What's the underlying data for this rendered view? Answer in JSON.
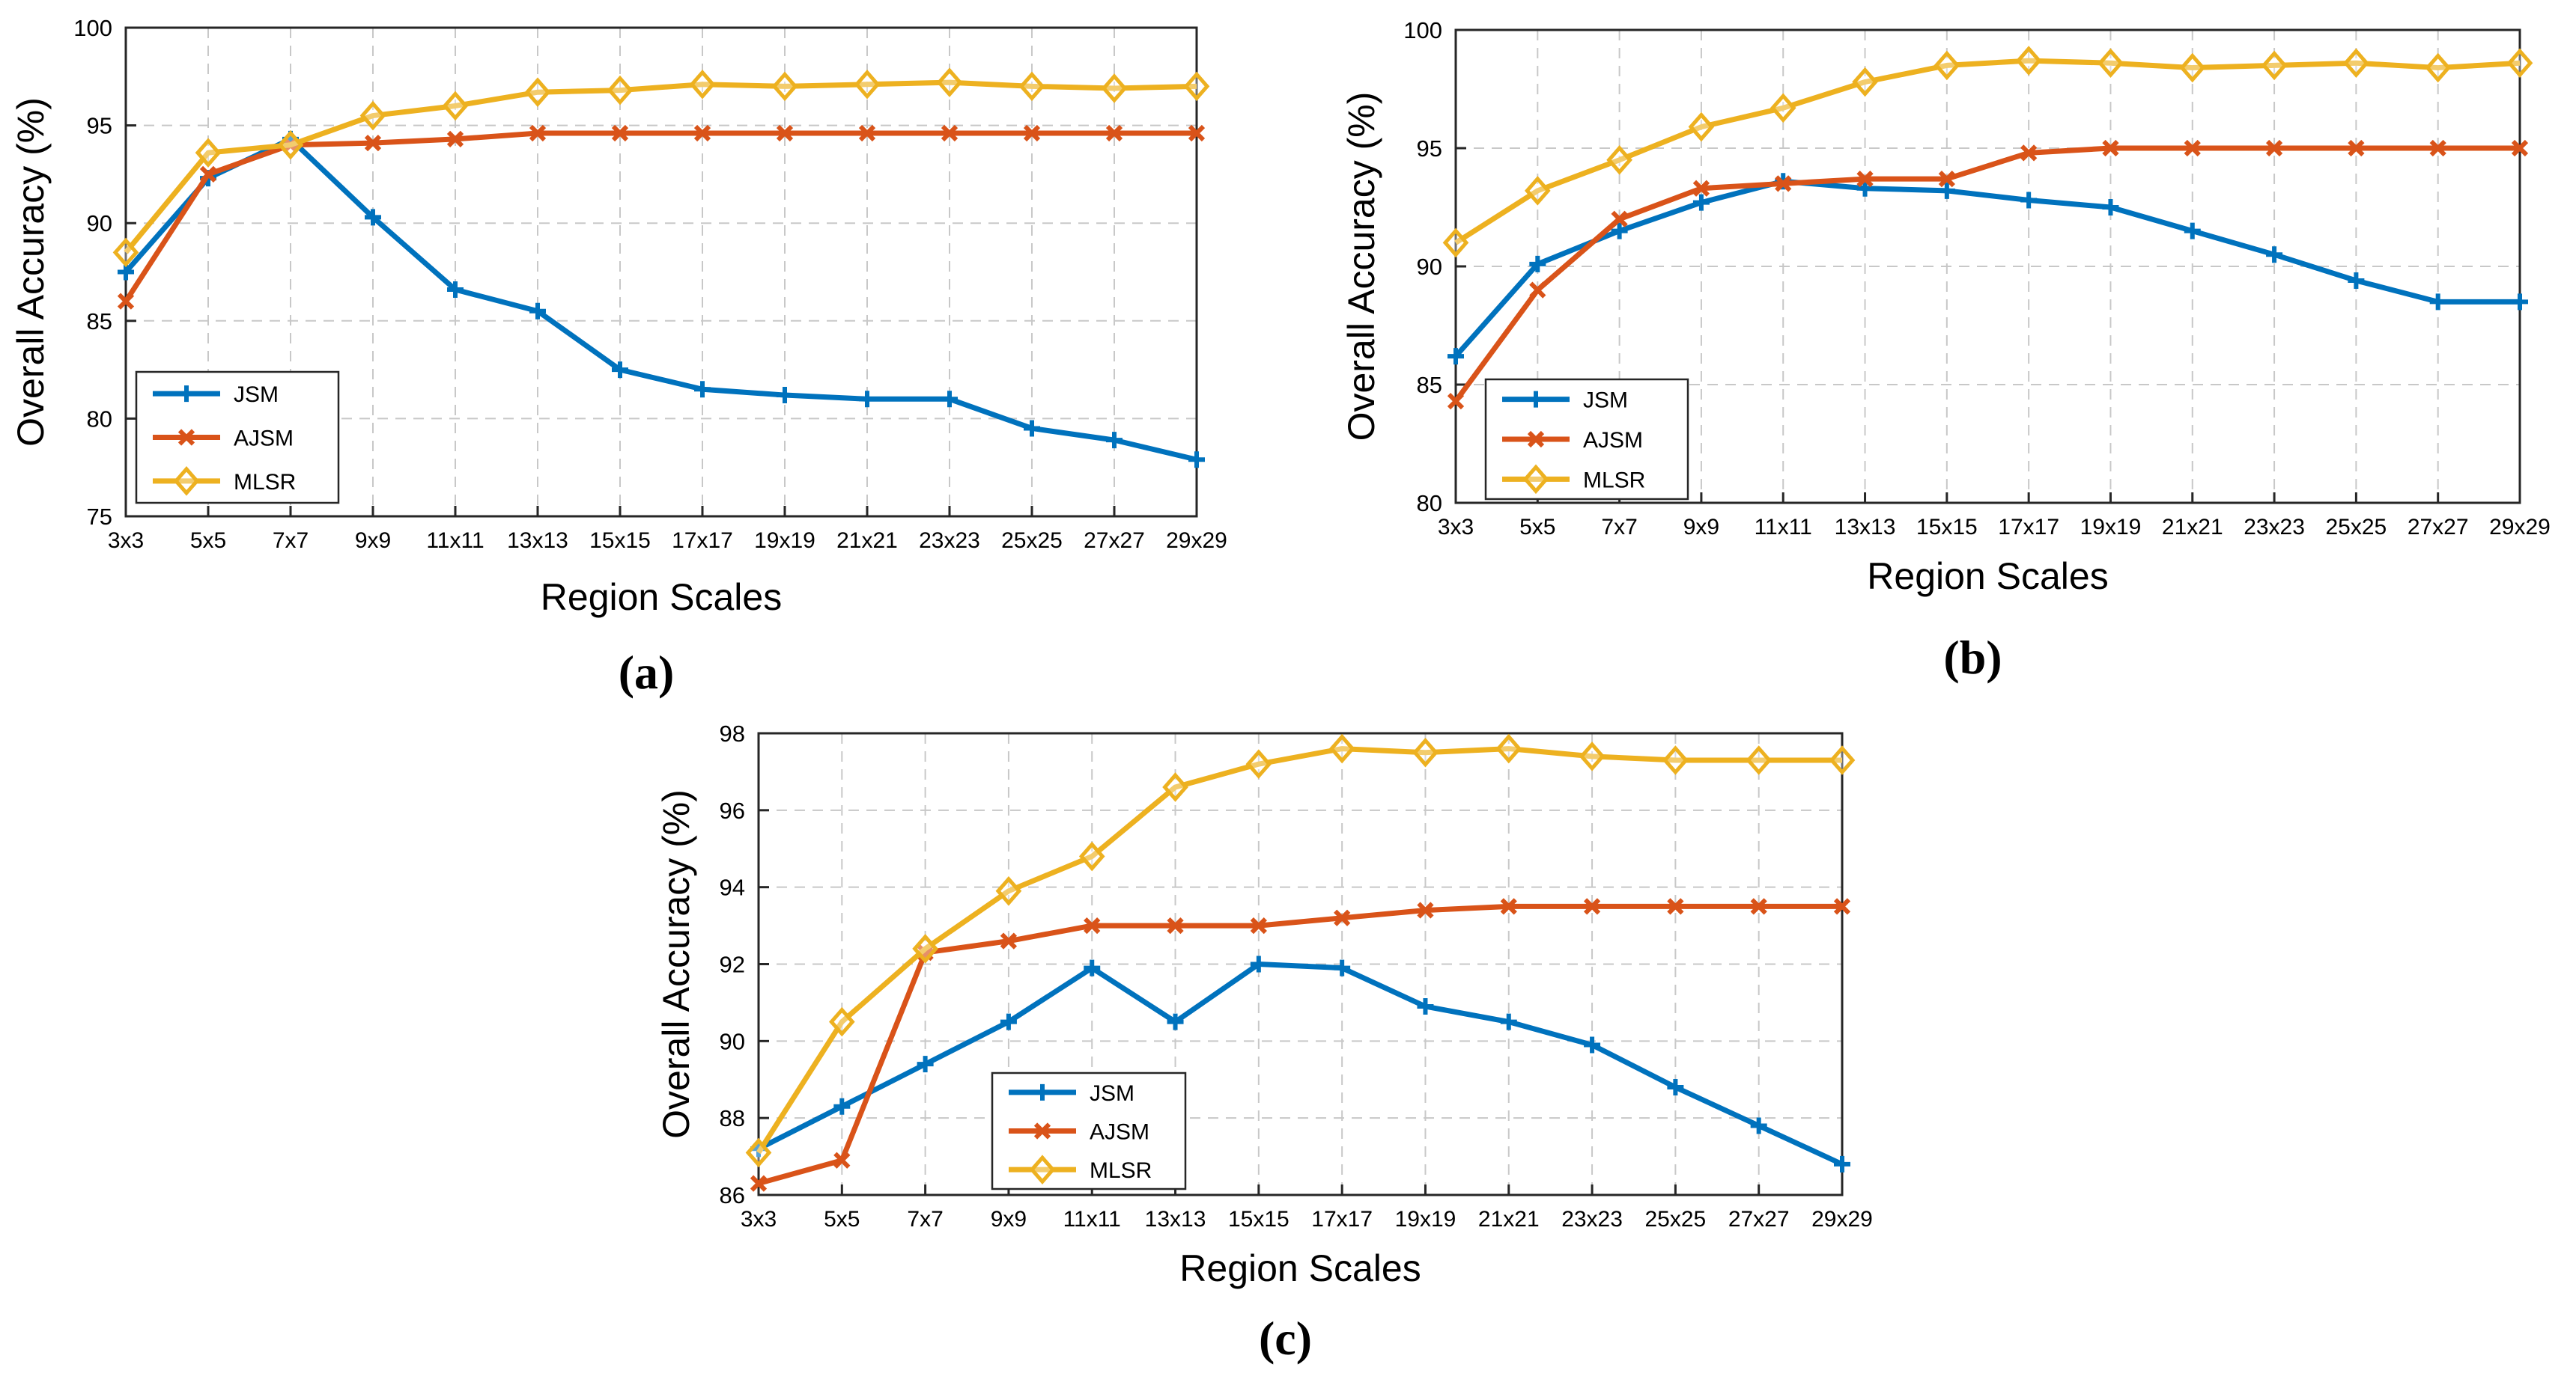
{
  "figure": {
    "colors": {
      "JSM": "#0072BD",
      "AJSM": "#D95319",
      "MLSR": "#EDB120",
      "axis": "#262626",
      "grid": "#c8c8c8"
    }
  },
  "chart_data": [
    {
      "type": "line",
      "panel_label": "(a)",
      "xlabel": "Region Scales",
      "ylabel": "Overall Accuracy (%)",
      "categories": [
        "3x3",
        "5x5",
        "7x7",
        "9x9",
        "11x11",
        "13x13",
        "15x15",
        "17x17",
        "19x19",
        "21x21",
        "23x23",
        "25x25",
        "27x27",
        "29x29"
      ],
      "ylim": [
        75,
        100
      ],
      "yticks": [
        75,
        80,
        85,
        90,
        95,
        100
      ],
      "grid": true,
      "legend_position": "bottom-left",
      "series": [
        {
          "name": "JSM",
          "marker": "plus",
          "values": [
            87.5,
            92.3,
            94.3,
            90.3,
            86.6,
            85.5,
            82.5,
            81.5,
            81.2,
            81.0,
            81.0,
            79.5,
            78.9,
            77.9
          ]
        },
        {
          "name": "AJSM",
          "marker": "x",
          "values": [
            86.0,
            92.5,
            94.0,
            94.1,
            94.3,
            94.6,
            94.6,
            94.6,
            94.6,
            94.6,
            94.6,
            94.6,
            94.6,
            94.6
          ]
        },
        {
          "name": "MLSR",
          "marker": "diamond",
          "values": [
            88.5,
            93.6,
            94.0,
            95.5,
            96.0,
            96.7,
            96.8,
            97.1,
            97.0,
            97.1,
            97.2,
            97.0,
            96.9,
            97.0
          ]
        }
      ]
    },
    {
      "type": "line",
      "panel_label": "(b)",
      "xlabel": "Region Scales",
      "ylabel": "Overall Accuracy (%)",
      "categories": [
        "3x3",
        "5x5",
        "7x7",
        "9x9",
        "11x11",
        "13x13",
        "15x15",
        "17x17",
        "19x19",
        "21x21",
        "23x23",
        "25x25",
        "27x27",
        "29x29"
      ],
      "ylim": [
        80,
        100
      ],
      "yticks": [
        80,
        85,
        90,
        95,
        100
      ],
      "grid": true,
      "legend_position": "bottom-left",
      "series": [
        {
          "name": "JSM",
          "marker": "plus",
          "values": [
            86.2,
            90.1,
            91.5,
            92.7,
            93.6,
            93.3,
            93.2,
            92.8,
            92.5,
            91.5,
            90.5,
            89.4,
            88.5,
            88.5
          ]
        },
        {
          "name": "AJSM",
          "marker": "x",
          "values": [
            84.3,
            89.0,
            92.0,
            93.3,
            93.5,
            93.7,
            93.7,
            94.8,
            95.0,
            95.0,
            95.0,
            95.0,
            95.0,
            95.0
          ]
        },
        {
          "name": "MLSR",
          "marker": "diamond",
          "values": [
            91.0,
            93.2,
            94.5,
            95.9,
            96.7,
            97.8,
            98.5,
            98.7,
            98.6,
            98.4,
            98.5,
            98.6,
            98.4,
            98.6
          ]
        }
      ]
    },
    {
      "type": "line",
      "panel_label": "(c)",
      "xlabel": "Region Scales",
      "ylabel": "Overall Accuracy (%)",
      "categories": [
        "3x3",
        "5x5",
        "7x7",
        "9x9",
        "11x11",
        "13x13",
        "15x15",
        "17x17",
        "19x19",
        "21x21",
        "23x23",
        "25x25",
        "27x27",
        "29x29"
      ],
      "ylim": [
        86,
        98
      ],
      "yticks": [
        86,
        88,
        90,
        92,
        94,
        96,
        98
      ],
      "grid": true,
      "legend_position": "bottom-left",
      "series": [
        {
          "name": "JSM",
          "marker": "plus",
          "values": [
            87.2,
            88.3,
            89.4,
            90.5,
            91.9,
            90.5,
            92.0,
            91.9,
            90.9,
            90.5,
            89.9,
            88.8,
            87.8,
            86.8
          ]
        },
        {
          "name": "AJSM",
          "marker": "x",
          "values": [
            86.3,
            86.9,
            92.3,
            92.6,
            93.0,
            93.0,
            93.0,
            93.2,
            93.4,
            93.5,
            93.5,
            93.5,
            93.5,
            93.5
          ]
        },
        {
          "name": "MLSR",
          "marker": "diamond",
          "values": [
            87.1,
            90.5,
            92.4,
            93.9,
            94.8,
            96.6,
            97.2,
            97.6,
            97.5,
            97.6,
            97.4,
            97.3,
            97.3,
            97.3
          ]
        }
      ]
    }
  ]
}
